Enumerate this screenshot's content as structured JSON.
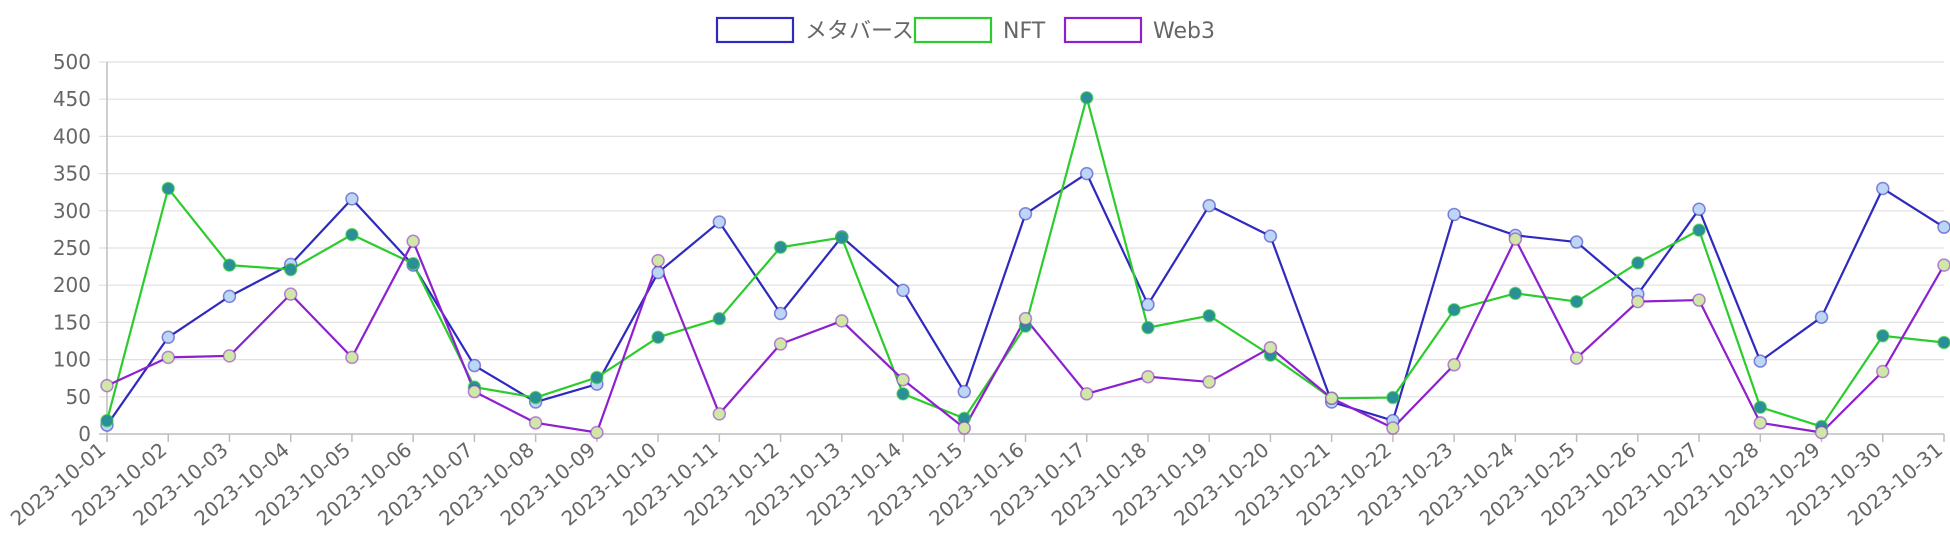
{
  "chart_data": {
    "type": "line",
    "ylim": [
      0,
      500
    ],
    "yticks": [
      "0",
      "50",
      "100",
      "150",
      "200",
      "250",
      "300",
      "350",
      "400",
      "450",
      "500"
    ],
    "grid": true,
    "legend": "top-center",
    "categories": [
      "2023-10-01",
      "2023-10-02",
      "2023-10-03",
      "2023-10-04",
      "2023-10-05",
      "2023-10-06",
      "2023-10-07",
      "2023-10-08",
      "2023-10-09",
      "2023-10-10",
      "2023-10-11",
      "2023-10-12",
      "2023-10-13",
      "2023-10-14",
      "2023-10-15",
      "2023-10-16",
      "2023-10-17",
      "2023-10-18",
      "2023-10-19",
      "2023-10-20",
      "2023-10-21",
      "2023-10-22",
      "2023-10-23",
      "2023-10-24",
      "2023-10-25",
      "2023-10-26",
      "2023-10-27",
      "2023-10-28",
      "2023-10-29",
      "2023-10-30",
      "2023-10-31"
    ],
    "series": [
      {
        "name": "メタバース",
        "color": "#2f29bf",
        "point_fill": "#bcd6f5",
        "values": [
          12,
          130,
          185,
          228,
          316,
          227,
          92,
          43,
          67,
          217,
          285,
          162,
          265,
          193,
          57,
          296,
          350,
          174,
          307,
          266,
          43,
          18,
          295,
          267,
          258,
          188,
          302,
          98,
          157,
          330,
          278
        ]
      },
      {
        "name": "NFT",
        "color": "#2ccc2c",
        "point_fill": "#2a8f99",
        "values": [
          18,
          330,
          227,
          221,
          268,
          229,
          63,
          49,
          76,
          130,
          155,
          251,
          264,
          54,
          21,
          145,
          452,
          143,
          159,
          106,
          48,
          49,
          167,
          189,
          178,
          230,
          274,
          36,
          10,
          132,
          123
        ]
      },
      {
        "name": "Web3",
        "color": "#8d20cf",
        "point_fill": "#cfe8a8",
        "values": [
          65,
          103,
          105,
          188,
          103,
          259,
          57,
          15,
          2,
          233,
          27,
          121,
          152,
          73,
          8,
          155,
          54,
          77,
          70,
          116,
          48,
          8,
          93,
          262,
          102,
          178,
          180,
          15,
          2,
          84,
          227
        ]
      }
    ]
  }
}
